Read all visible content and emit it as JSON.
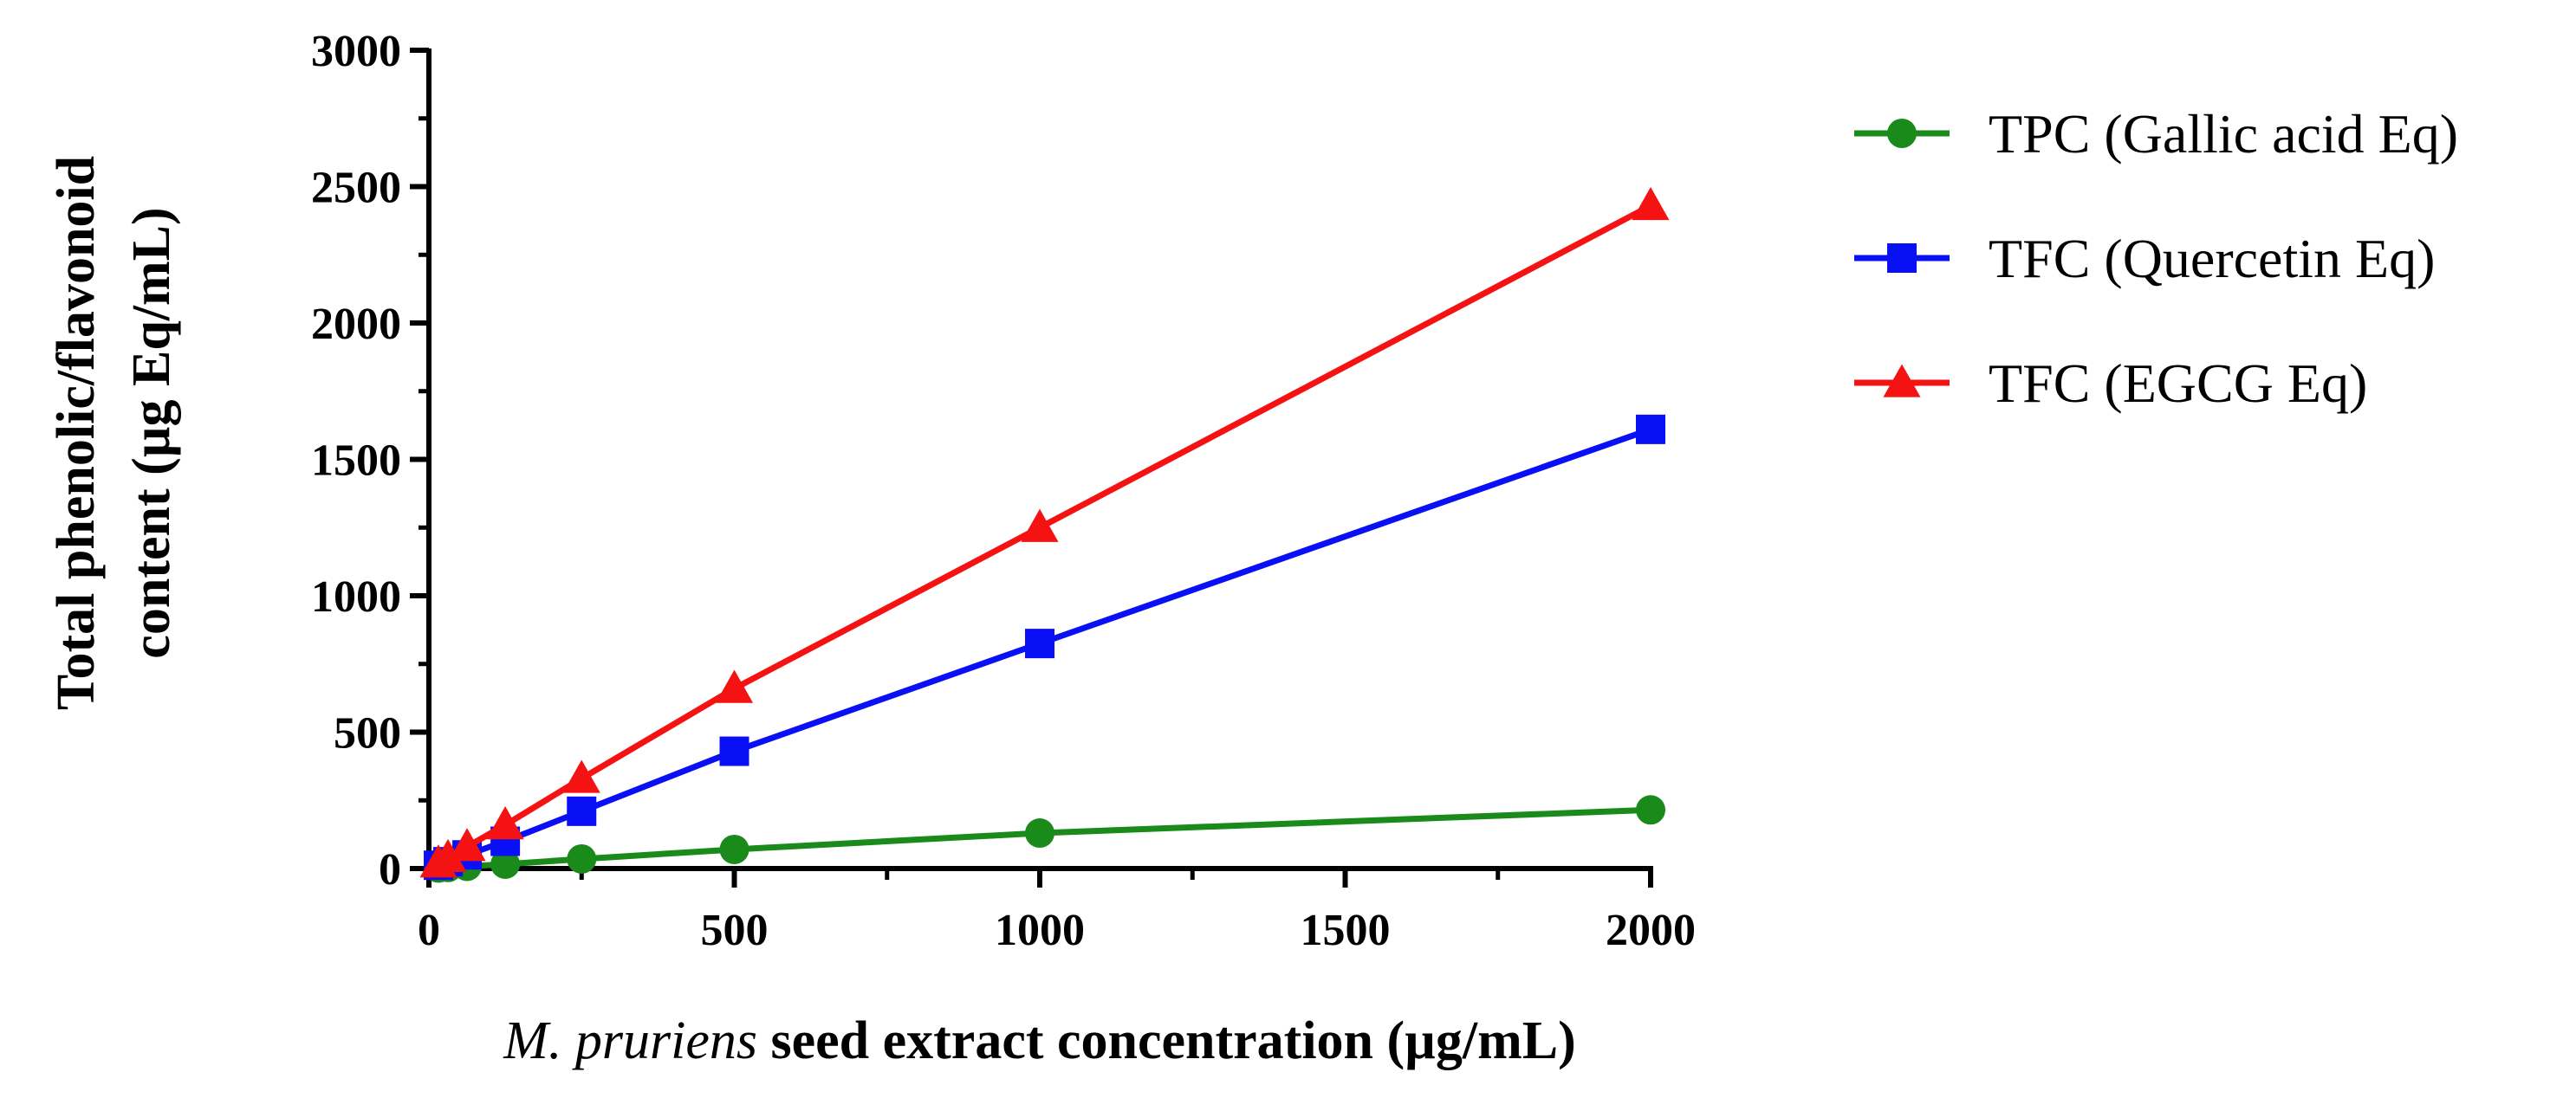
{
  "chart_data": {
    "type": "line",
    "title": "",
    "xlabel": {
      "italic_part": "M. pruriens",
      "rest": " seed extract concentration (µg/mL)"
    },
    "ylabel": {
      "line1": "Total phenolic/flavonoid",
      "line2": "content (µg Eq/mL)"
    },
    "xlim": [
      0,
      2000
    ],
    "ylim": [
      0,
      3000
    ],
    "x_ticks": [
      0,
      500,
      1000,
      1500,
      2000
    ],
    "y_ticks": [
      0,
      500,
      1000,
      1500,
      2000,
      2500,
      3000
    ],
    "grid": false,
    "legend_position": "top-right outside",
    "x": [
      15.625,
      31.25,
      62.5,
      125,
      250,
      500,
      1000,
      2000
    ],
    "series": [
      {
        "name": "TPC (Gallic acid Eq)",
        "color": "#1a8a1a",
        "marker": "circle",
        "values": [
          2,
          4,
          8,
          16,
          35,
          70,
          130,
          215
        ]
      },
      {
        "name": "TFC (Quercetin Eq)",
        "color": "#0a10f5",
        "marker": "square",
        "values": [
          12,
          25,
          50,
          100,
          210,
          430,
          825,
          1610
        ]
      },
      {
        "name": "TFC (EGCG Eq)",
        "color": "#f51212",
        "marker": "triangle",
        "values": [
          20,
          40,
          80,
          160,
          330,
          660,
          1250,
          2430
        ]
      }
    ]
  }
}
